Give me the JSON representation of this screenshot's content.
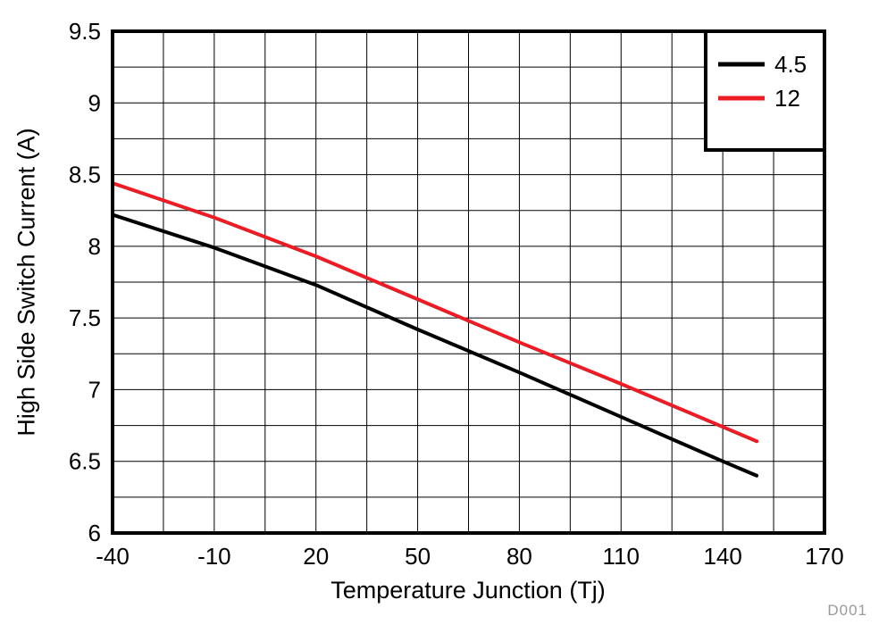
{
  "chart_data": {
    "type": "line",
    "title": "",
    "xlabel": "Temperature Junction (Tj)",
    "ylabel": "High Side Switch Current (A)",
    "xlim": [
      -40,
      170
    ],
    "ylim": [
      6,
      9.5
    ],
    "xticks": {
      "values": [
        -40,
        -10,
        20,
        50,
        80,
        110,
        140,
        170
      ],
      "labels": [
        "-40",
        "-10",
        "20",
        "50",
        "80",
        "110",
        "140",
        "170"
      ]
    },
    "yticks": {
      "values": [
        6,
        6.5,
        7,
        7.5,
        8,
        8.5,
        9,
        9.5
      ],
      "labels": [
        "6",
        "6.5",
        "7",
        "7.5",
        "8",
        "8.5",
        "9",
        "9.5"
      ]
    },
    "grid": {
      "show": true,
      "x_minor_step": 15,
      "y_minor_step": 0.25,
      "color": "#000000",
      "line_width": 1
    },
    "legend": {
      "position": "top-right"
    },
    "series": [
      {
        "name": "4.5",
        "color": "#000000",
        "x": [
          -40,
          -10,
          20,
          50,
          80,
          110,
          140,
          150
        ],
        "y": [
          8.22,
          7.99,
          7.73,
          7.42,
          7.12,
          6.81,
          6.5,
          6.4
        ]
      },
      {
        "name": "12",
        "color": "#ed1c24",
        "x": [
          -40,
          -10,
          20,
          50,
          80,
          110,
          140,
          150
        ],
        "y": [
          8.44,
          8.2,
          7.93,
          7.63,
          7.33,
          7.04,
          6.74,
          6.64
        ]
      }
    ],
    "watermark": "D001",
    "watermark_color": "#9a9a9a",
    "border_color": "#000000"
  }
}
